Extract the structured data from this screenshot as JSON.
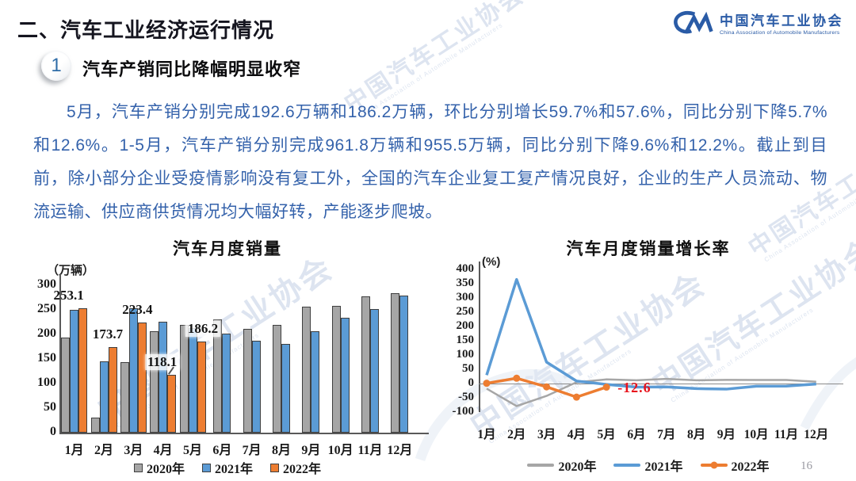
{
  "page": {
    "main_title": "二、汽车工业经济运行情况",
    "page_number": "16"
  },
  "logo": {
    "cn": "中国汽车工业协会",
    "en": "China Association of Automobile Manufacturers"
  },
  "watermark": {
    "text_cn": "中国汽车工业协会",
    "text_en": "China Association of Automobile Manufacturers"
  },
  "section": {
    "number": "1",
    "title": "汽车产销同比降幅明显收窄"
  },
  "body_text": "5月，汽车产销分别完成192.6万辆和186.2万辆，环比分别增长59.7%和57.6%，同比分别下降5.7%和12.6%。1-5月，汽车产销分别完成961.8万辆和955.5万辆，同比分别下降9.6%和12.2%。截止到目前，除小部分企业受疫情影响没有复工外，全国的汽车企业复工复产情况良好，企业的生产人员流动、物流运输、供应商供货情况均大幅好转，产能逐步爬坡。",
  "colors": {
    "series_2020_gray": "#a6a6a6",
    "series_2021_blue": "#5b9bd5",
    "series_2022_orange": "#ed7d31",
    "annotation_red": "#e8121c",
    "body_text_blue": "#3462ab",
    "logo_blue": "#2a5ba6",
    "axis_dark": "#595959"
  },
  "chart_data": [
    {
      "type": "bar",
      "title": "汽车月度销量",
      "unit": "（万辆）",
      "xlabel": "",
      "ylabel": "万辆",
      "categories": [
        "1月",
        "2月",
        "3月",
        "4月",
        "5月",
        "6月",
        "7月",
        "8月",
        "9月",
        "10月",
        "11月",
        "12月"
      ],
      "series": [
        {
          "name": "2020年",
          "color": "#a6a6a6",
          "values": [
            194.1,
            31.0,
            143.0,
            207.0,
            219.4,
            230.0,
            211.2,
            218.6,
            256.5,
            257.3,
            277.0,
            283.1
          ]
        },
        {
          "name": "2021年",
          "color": "#5b9bd5",
          "values": [
            250.3,
            145.5,
            252.6,
            225.2,
            212.8,
            201.5,
            186.4,
            179.9,
            206.7,
            233.3,
            252.2,
            278.6
          ]
        },
        {
          "name": "2022年",
          "color": "#ed7d31",
          "values": [
            253.1,
            173.7,
            223.4,
            118.1,
            186.2,
            null,
            null,
            null,
            null,
            null,
            null,
            null
          ],
          "data_labels": [
            "253.1",
            "173.7",
            "223.4",
            "118.1",
            "186.2"
          ]
        }
      ],
      "ylim": [
        0,
        300
      ],
      "ytick_step": 50,
      "grid": false,
      "legend_position": "bottom"
    },
    {
      "type": "line",
      "title": "汽车月度销量增长率",
      "unit": "(%)",
      "xlabel": "",
      "ylabel": "%",
      "categories": [
        "1月",
        "2月",
        "3月",
        "4月",
        "5月",
        "6月",
        "7月",
        "8月",
        "9月",
        "10月",
        "11月",
        "12月"
      ],
      "series": [
        {
          "name": "2020年",
          "color": "#a6a6a6",
          "marker": false,
          "values": [
            -18.0,
            -79.1,
            -43.3,
            4.4,
            14.5,
            11.6,
            16.4,
            11.6,
            12.8,
            12.5,
            12.6,
            6.4
          ]
        },
        {
          "name": "2021年",
          "color": "#5b9bd5",
          "marker": false,
          "values": [
            29.5,
            364.8,
            74.9,
            8.6,
            -3.1,
            -12.4,
            -11.9,
            -17.8,
            -19.6,
            -9.4,
            -9.1,
            -1.6
          ]
        },
        {
          "name": "2022年",
          "color": "#ed7d31",
          "marker": true,
          "values": [
            0.9,
            18.7,
            -11.7,
            -47.6,
            -12.6,
            null,
            null,
            null,
            null,
            null,
            null,
            null
          ]
        }
      ],
      "ylim": [
        -100,
        400
      ],
      "ytick_step": 50,
      "grid": false,
      "legend_position": "bottom",
      "annotation": {
        "text": "-12.6",
        "color": "#e8121c",
        "month_index": 4,
        "value": -12.6
      }
    }
  ]
}
